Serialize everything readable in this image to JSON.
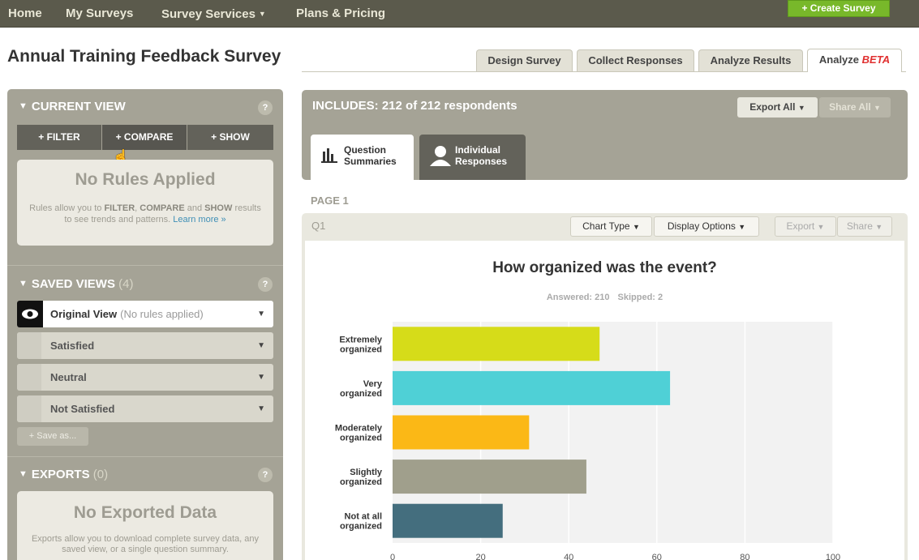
{
  "nav": {
    "home": "Home",
    "my_surveys": "My Surveys",
    "survey_services": "Survey Services",
    "plans_pricing": "Plans & Pricing",
    "create_survey": "+ Create Survey"
  },
  "title": "Annual Training Feedback Survey",
  "tabs": {
    "design": "Design Survey",
    "collect": "Collect Responses",
    "analyze_results": "Analyze Results",
    "analyze": "Analyze",
    "beta": "BETA"
  },
  "sidebar": {
    "current_view": {
      "heading": "CURRENT VIEW",
      "help": "?",
      "filter": "+ FILTER",
      "compare": "+ COMPARE",
      "show": "+ SHOW",
      "no_rules": "No Rules Applied",
      "desc_1": "Rules allow you to ",
      "desc_filter": "FILTER",
      "desc_2": ", ",
      "desc_compare": "COMPARE",
      "desc_3": " and ",
      "desc_show": "SHOW",
      "desc_4": " results to see trends and patterns. ",
      "learn_more": "Learn more »"
    },
    "saved_views": {
      "heading": "SAVED VIEWS",
      "count": "(4)",
      "help": "?",
      "items": [
        {
          "label": "Original View",
          "sub": "(No rules applied)"
        },
        {
          "label": "Satisfied"
        },
        {
          "label": "Neutral"
        },
        {
          "label": "Not Satisfied"
        }
      ],
      "save_as": "+ Save as..."
    },
    "exports": {
      "heading": "EXPORTS",
      "count": "(0)",
      "help": "?",
      "no_data": "No Exported Data",
      "desc": "Exports allow you to download complete survey data, any saved view, or a single question summary."
    }
  },
  "main": {
    "includes": "INCLUDES: 212 of 212 respondents",
    "export_all": "Export All",
    "share_all": "Share All",
    "tab_question_1": "Question",
    "tab_question_2": "Summaries",
    "tab_individual_1": "Individual",
    "tab_individual_2": "Responses",
    "page": "PAGE 1",
    "q": "Q1",
    "chart_type": "Chart Type",
    "display_options": "Display Options",
    "export": "Export",
    "share": "Share",
    "answered": "Answered: 210",
    "skipped": "Skipped: 2"
  },
  "chart_data": {
    "type": "bar",
    "orientation": "horizontal",
    "title": "How organized was the event?",
    "categories": [
      [
        "Extremely",
        "organized"
      ],
      [
        "Very",
        "organized"
      ],
      [
        "Moderately",
        "organized"
      ],
      [
        "Slightly",
        "organized"
      ],
      [
        "Not at all",
        "organized"
      ]
    ],
    "values": [
      47,
      63,
      31,
      44,
      25
    ],
    "colors": [
      "#d6dc19",
      "#4fd0d6",
      "#fbb816",
      "#a09f8c",
      "#446e7e"
    ],
    "xlim": [
      0,
      100
    ],
    "xticks": [
      0,
      20,
      40,
      60,
      80,
      100
    ],
    "grid": true
  }
}
